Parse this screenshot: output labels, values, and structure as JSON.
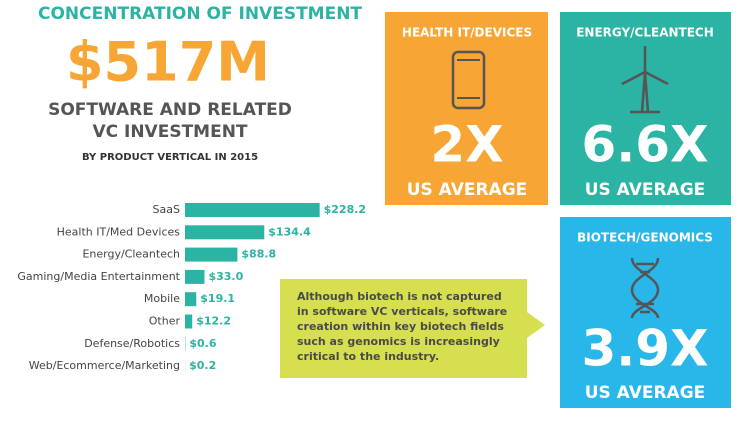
{
  "header": {
    "title": "CONCENTRATION OF INVESTMENT",
    "amount": "$517M",
    "subtitle_lines": [
      "SOFTWARE AND RELATED",
      "VC INVESTMENT"
    ],
    "note": "BY PRODUCT VERTICAL IN 2015"
  },
  "chart_data": {
    "type": "bar",
    "orientation": "horizontal",
    "color": "#2bb3a3",
    "categories": [
      "SaaS",
      "Health IT/Med Devices",
      "Energy/Cleantech",
      "Gaming/Media Entertainment",
      "Mobile",
      "Other",
      "Defense/Robotics",
      "Web/Ecommerce/Marketing"
    ],
    "values": [
      228.2,
      134.4,
      88.8,
      33.0,
      19.1,
      12.2,
      0.6,
      0.2
    ],
    "value_labels": [
      "$228.2",
      "$134.4",
      "$88.8",
      "$33.0",
      "$19.1",
      "$12.2",
      "$0.6",
      "$0.2"
    ]
  },
  "callout": {
    "lines": [
      "Although biotech is not captured",
      "in software VC verticals, software",
      "creation within key biotech fields",
      "such as genomics is increasingly",
      "critical to the industry."
    ]
  },
  "tiles": [
    {
      "title": "HEALTH IT/DEVICES",
      "multiple": "2X",
      "caption": "US AVERAGE"
    },
    {
      "title": "ENERGY/CLEANTECH",
      "multiple": "6.6X",
      "caption": "US AVERAGE"
    },
    {
      "title": "BIOTECH/GENOMICS",
      "multiple": "3.9X",
      "caption": "US AVERAGE"
    }
  ]
}
